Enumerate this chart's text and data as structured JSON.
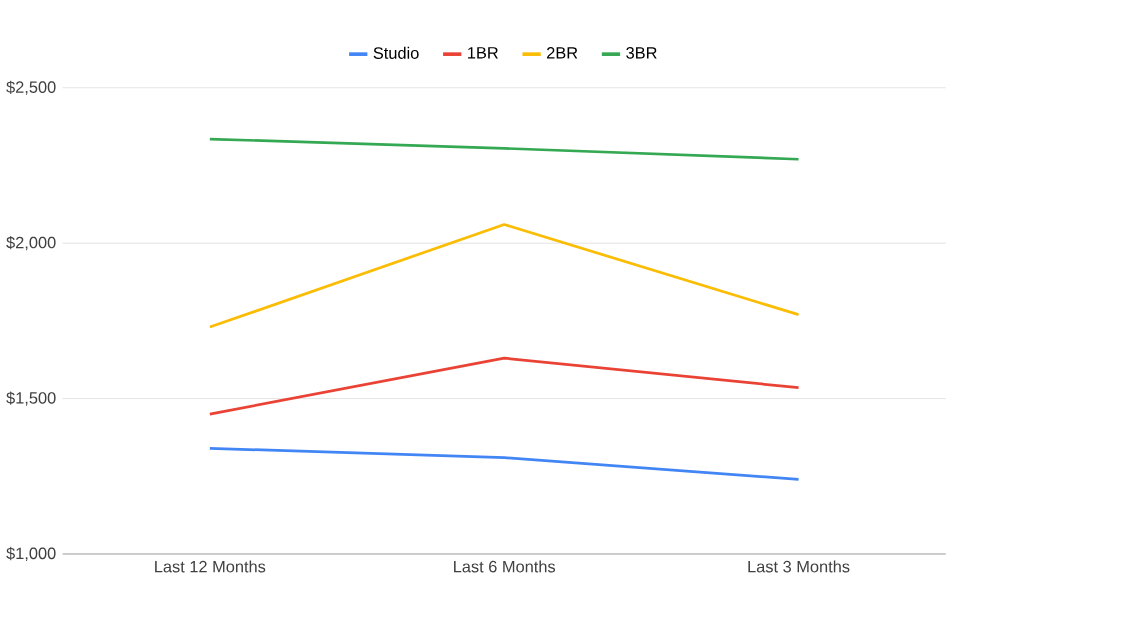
{
  "chart_data": {
    "type": "line",
    "categories": [
      "Last 12 Months",
      "Last 6 Months",
      "Last 3 Months"
    ],
    "series": [
      {
        "name": "Studio",
        "color": "#4285f4",
        "values": [
          1340,
          1310,
          1240
        ]
      },
      {
        "name": "1BR",
        "color": "#ea4335",
        "values": [
          1450,
          1630,
          1535
        ]
      },
      {
        "name": "2BR",
        "color": "#fbbc04",
        "values": [
          1730,
          2060,
          1770
        ]
      },
      {
        "name": "3BR",
        "color": "#34a853",
        "values": [
          2335,
          2305,
          2270
        ]
      }
    ],
    "ylim": [
      1000,
      2500
    ],
    "yticks": [
      {
        "value": 1000,
        "label": "$1,000"
      },
      {
        "value": 1500,
        "label": "$1,500"
      },
      {
        "value": 2000,
        "label": "$2,000"
      },
      {
        "value": 2500,
        "label": "$2,500"
      }
    ],
    "grid": "y",
    "legend": "top",
    "marker": "none",
    "line_style": "solid"
  }
}
